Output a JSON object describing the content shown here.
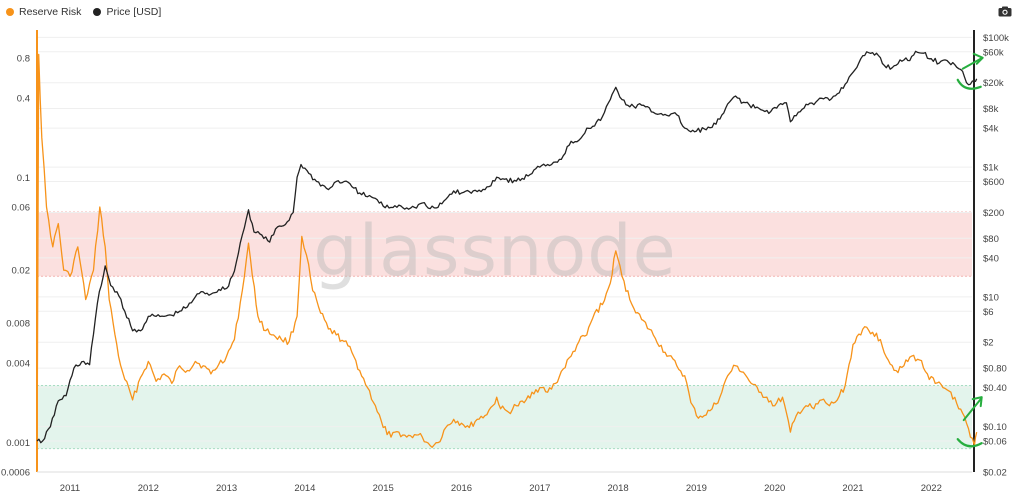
{
  "legend": {
    "reserve_risk_label": "Reserve Risk",
    "price_label": "Price [USD]"
  },
  "watermark": "glassnode",
  "colors": {
    "reserve_risk": "#f7931a",
    "price": "#222222",
    "red_band": "#fbe0df",
    "green_band": "#e3f4ec",
    "annotation": "#27ae3f"
  },
  "icons": {
    "camera": "camera-icon"
  },
  "chart_data": {
    "type": "line",
    "x_ticks": [
      "2011",
      "2012",
      "2013",
      "2014",
      "2015",
      "2016",
      "2017",
      "2018",
      "2019",
      "2020",
      "2021",
      "2022"
    ],
    "left_axis": {
      "label": "",
      "scale": "log",
      "ticks": [
        "0.8",
        "0.4",
        "0.1",
        "0.06",
        "0.02",
        "0.008",
        "0.004",
        "0.001",
        "0.0006"
      ],
      "range": [
        0.0006,
        1.3
      ]
    },
    "right_axis": {
      "label": "",
      "scale": "log",
      "ticks": [
        "$100k",
        "$60k",
        "$20k",
        "$8k",
        "$4k",
        "$1k",
        "$600",
        "$200",
        "$80",
        "$40",
        "$10",
        "$6",
        "$2",
        "$0.80",
        "$0.40",
        "$0.10",
        "$0.06",
        "$0.02"
      ],
      "range": [
        0.02,
        130000
      ]
    },
    "bands": [
      {
        "name": "red",
        "axis": "left",
        "from": 0.018,
        "to": 0.055
      },
      {
        "name": "green",
        "axis": "left",
        "from": 0.0009,
        "to": 0.0027
      }
    ],
    "series": [
      {
        "name": "Reserve Risk",
        "axis": "left",
        "points": [
          [
            2010.58,
            0.0009
          ],
          [
            2010.6,
            0.85
          ],
          [
            2010.64,
            0.2
          ],
          [
            2010.7,
            0.06
          ],
          [
            2010.78,
            0.03
          ],
          [
            2010.85,
            0.045
          ],
          [
            2010.92,
            0.02
          ],
          [
            2011.0,
            0.018
          ],
          [
            2011.1,
            0.03
          ],
          [
            2011.2,
            0.012
          ],
          [
            2011.3,
            0.02
          ],
          [
            2011.38,
            0.06
          ],
          [
            2011.45,
            0.03
          ],
          [
            2011.5,
            0.012
          ],
          [
            2011.55,
            0.008
          ],
          [
            2011.62,
            0.0045
          ],
          [
            2011.7,
            0.003
          ],
          [
            2011.8,
            0.0021
          ],
          [
            2011.9,
            0.0031
          ],
          [
            2012.0,
            0.0041
          ],
          [
            2012.1,
            0.0029
          ],
          [
            2012.2,
            0.0033
          ],
          [
            2012.3,
            0.0028
          ],
          [
            2012.4,
            0.0038
          ],
          [
            2012.5,
            0.0035
          ],
          [
            2012.6,
            0.0041
          ],
          [
            2012.7,
            0.0038
          ],
          [
            2012.8,
            0.0033
          ],
          [
            2012.9,
            0.0039
          ],
          [
            2013.0,
            0.0045
          ],
          [
            2013.1,
            0.006
          ],
          [
            2013.2,
            0.014
          ],
          [
            2013.28,
            0.032
          ],
          [
            2013.33,
            0.018
          ],
          [
            2013.4,
            0.009
          ],
          [
            2013.5,
            0.007
          ],
          [
            2013.6,
            0.0065
          ],
          [
            2013.7,
            0.006
          ],
          [
            2013.8,
            0.0058
          ],
          [
            2013.9,
            0.009
          ],
          [
            2013.96,
            0.036
          ],
          [
            2014.02,
            0.026
          ],
          [
            2014.1,
            0.014
          ],
          [
            2014.2,
            0.0095
          ],
          [
            2014.3,
            0.0072
          ],
          [
            2014.4,
            0.0065
          ],
          [
            2014.5,
            0.0058
          ],
          [
            2014.6,
            0.0048
          ],
          [
            2014.7,
            0.0035
          ],
          [
            2014.8,
            0.0026
          ],
          [
            2014.9,
            0.0019
          ],
          [
            2015.0,
            0.0013
          ],
          [
            2015.1,
            0.0011
          ],
          [
            2015.2,
            0.0012
          ],
          [
            2015.3,
            0.0011
          ],
          [
            2015.4,
            0.00115
          ],
          [
            2015.5,
            0.0011
          ],
          [
            2015.6,
            0.00095
          ],
          [
            2015.7,
            0.001
          ],
          [
            2015.8,
            0.0013
          ],
          [
            2015.9,
            0.0015
          ],
          [
            2016.0,
            0.0014
          ],
          [
            2016.1,
            0.0013
          ],
          [
            2016.2,
            0.0015
          ],
          [
            2016.3,
            0.0016
          ],
          [
            2016.4,
            0.0019
          ],
          [
            2016.45,
            0.0022
          ],
          [
            2016.5,
            0.0018
          ],
          [
            2016.6,
            0.0017
          ],
          [
            2016.7,
            0.0019
          ],
          [
            2016.8,
            0.002
          ],
          [
            2016.9,
            0.0024
          ],
          [
            2017.0,
            0.0026
          ],
          [
            2017.1,
            0.0024
          ],
          [
            2017.2,
            0.0028
          ],
          [
            2017.3,
            0.0036
          ],
          [
            2017.4,
            0.0045
          ],
          [
            2017.5,
            0.0058
          ],
          [
            2017.6,
            0.0065
          ],
          [
            2017.7,
            0.0095
          ],
          [
            2017.8,
            0.011
          ],
          [
            2017.9,
            0.016
          ],
          [
            2017.97,
            0.028
          ],
          [
            2018.05,
            0.018
          ],
          [
            2018.15,
            0.012
          ],
          [
            2018.3,
            0.0085
          ],
          [
            2018.45,
            0.0065
          ],
          [
            2018.6,
            0.0048
          ],
          [
            2018.75,
            0.0038
          ],
          [
            2018.85,
            0.0032
          ],
          [
            2018.93,
            0.002
          ],
          [
            2019.0,
            0.0016
          ],
          [
            2019.1,
            0.0016
          ],
          [
            2019.2,
            0.0018
          ],
          [
            2019.3,
            0.0022
          ],
          [
            2019.4,
            0.0032
          ],
          [
            2019.5,
            0.0038
          ],
          [
            2019.6,
            0.0034
          ],
          [
            2019.7,
            0.0028
          ],
          [
            2019.8,
            0.0024
          ],
          [
            2019.9,
            0.0022
          ],
          [
            2020.0,
            0.0019
          ],
          [
            2020.1,
            0.0022
          ],
          [
            2020.2,
            0.0012
          ],
          [
            2020.3,
            0.0017
          ],
          [
            2020.4,
            0.0019
          ],
          [
            2020.5,
            0.0018
          ],
          [
            2020.6,
            0.0021
          ],
          [
            2020.7,
            0.0019
          ],
          [
            2020.8,
            0.0021
          ],
          [
            2020.9,
            0.0027
          ],
          [
            2021.0,
            0.0055
          ],
          [
            2021.1,
            0.0065
          ],
          [
            2021.15,
            0.0075
          ],
          [
            2021.25,
            0.0068
          ],
          [
            2021.35,
            0.006
          ],
          [
            2021.45,
            0.0042
          ],
          [
            2021.55,
            0.0035
          ],
          [
            2021.65,
            0.0038
          ],
          [
            2021.75,
            0.0045
          ],
          [
            2021.85,
            0.0042
          ],
          [
            2021.95,
            0.0033
          ],
          [
            2022.05,
            0.0028
          ],
          [
            2022.15,
            0.0026
          ],
          [
            2022.25,
            0.0024
          ],
          [
            2022.35,
            0.0018
          ],
          [
            2022.45,
            0.0014
          ],
          [
            2022.5,
            0.0011
          ],
          [
            2022.55,
            0.00095
          ],
          [
            2022.58,
            0.0012
          ]
        ]
      },
      {
        "name": "Price [USD]",
        "axis": "right",
        "points": [
          [
            2010.58,
            0.06
          ],
          [
            2010.65,
            0.06
          ],
          [
            2010.75,
            0.1
          ],
          [
            2010.85,
            0.25
          ],
          [
            2010.95,
            0.3
          ],
          [
            2011.05,
            0.8
          ],
          [
            2011.15,
            1.0
          ],
          [
            2011.25,
            0.9
          ],
          [
            2011.35,
            8
          ],
          [
            2011.45,
            30
          ],
          [
            2011.52,
            15
          ],
          [
            2011.6,
            12
          ],
          [
            2011.7,
            6
          ],
          [
            2011.8,
            3
          ],
          [
            2011.9,
            3
          ],
          [
            2012.0,
            5
          ],
          [
            2012.1,
            5
          ],
          [
            2012.2,
            5
          ],
          [
            2012.3,
            5.2
          ],
          [
            2012.4,
            6
          ],
          [
            2012.5,
            7
          ],
          [
            2012.6,
            10
          ],
          [
            2012.7,
            12
          ],
          [
            2012.8,
            11
          ],
          [
            2012.9,
            13
          ],
          [
            2013.0,
            13.5
          ],
          [
            2013.1,
            25
          ],
          [
            2013.2,
            90
          ],
          [
            2013.28,
            220
          ],
          [
            2013.35,
            100
          ],
          [
            2013.45,
            90
          ],
          [
            2013.55,
            70
          ],
          [
            2013.65,
            120
          ],
          [
            2013.75,
            130
          ],
          [
            2013.85,
            200
          ],
          [
            2013.9,
            700
          ],
          [
            2013.95,
            1100
          ],
          [
            2014.05,
            800
          ],
          [
            2014.15,
            600
          ],
          [
            2014.3,
            450
          ],
          [
            2014.4,
            600
          ],
          [
            2014.5,
            600
          ],
          [
            2014.6,
            500
          ],
          [
            2014.7,
            400
          ],
          [
            2014.8,
            350
          ],
          [
            2014.9,
            330
          ],
          [
            2015.0,
            250
          ],
          [
            2015.1,
            240
          ],
          [
            2015.2,
            260
          ],
          [
            2015.3,
            235
          ],
          [
            2015.4,
            240
          ],
          [
            2015.5,
            280
          ],
          [
            2015.6,
            230
          ],
          [
            2015.7,
            240
          ],
          [
            2015.8,
            320
          ],
          [
            2015.9,
            430
          ],
          [
            2016.0,
            400
          ],
          [
            2016.1,
            420
          ],
          [
            2016.2,
            420
          ],
          [
            2016.3,
            450
          ],
          [
            2016.45,
            700
          ],
          [
            2016.55,
            650
          ],
          [
            2016.7,
            610
          ],
          [
            2016.85,
            730
          ],
          [
            2016.95,
            950
          ],
          [
            2017.0,
            1000
          ],
          [
            2017.1,
            1100
          ],
          [
            2017.2,
            1200
          ],
          [
            2017.3,
            1500
          ],
          [
            2017.4,
            2500
          ],
          [
            2017.5,
            2600
          ],
          [
            2017.6,
            4000
          ],
          [
            2017.7,
            4300
          ],
          [
            2017.8,
            6000
          ],
          [
            2017.9,
            11000
          ],
          [
            2017.97,
            17000
          ],
          [
            2018.05,
            11000
          ],
          [
            2018.15,
            8500
          ],
          [
            2018.3,
            9000
          ],
          [
            2018.45,
            7000
          ],
          [
            2018.6,
            6500
          ],
          [
            2018.75,
            6400
          ],
          [
            2018.85,
            4000
          ],
          [
            2018.93,
            3500
          ],
          [
            2019.0,
            3600
          ],
          [
            2019.1,
            3900
          ],
          [
            2019.2,
            4100
          ],
          [
            2019.3,
            5500
          ],
          [
            2019.45,
            11000
          ],
          [
            2019.5,
            12500
          ],
          [
            2019.6,
            10000
          ],
          [
            2019.75,
            8200
          ],
          [
            2019.85,
            7500
          ],
          [
            2019.95,
            7200
          ],
          [
            2020.05,
            9000
          ],
          [
            2020.15,
            9800
          ],
          [
            2020.2,
            5000
          ],
          [
            2020.3,
            7000
          ],
          [
            2020.4,
            9300
          ],
          [
            2020.5,
            9200
          ],
          [
            2020.6,
            11500
          ],
          [
            2020.7,
            10700
          ],
          [
            2020.8,
            13500
          ],
          [
            2020.9,
            19000
          ],
          [
            2021.0,
            29000
          ],
          [
            2021.1,
            47000
          ],
          [
            2021.2,
            58000
          ],
          [
            2021.3,
            57000
          ],
          [
            2021.4,
            37000
          ],
          [
            2021.5,
            34000
          ],
          [
            2021.6,
            45000
          ],
          [
            2021.7,
            44000
          ],
          [
            2021.8,
            61000
          ],
          [
            2021.9,
            57000
          ],
          [
            2022.0,
            47000
          ],
          [
            2022.1,
            40000
          ],
          [
            2022.2,
            44000
          ],
          [
            2022.3,
            38000
          ],
          [
            2022.4,
            30000
          ],
          [
            2022.45,
            20000
          ],
          [
            2022.5,
            19000
          ],
          [
            2022.55,
            21000
          ],
          [
            2022.58,
            23000
          ]
        ]
      }
    ],
    "annotations": [
      "green-up-arrow-price",
      "green-check-price",
      "green-up-arrow-risk",
      "green-check-risk"
    ]
  }
}
